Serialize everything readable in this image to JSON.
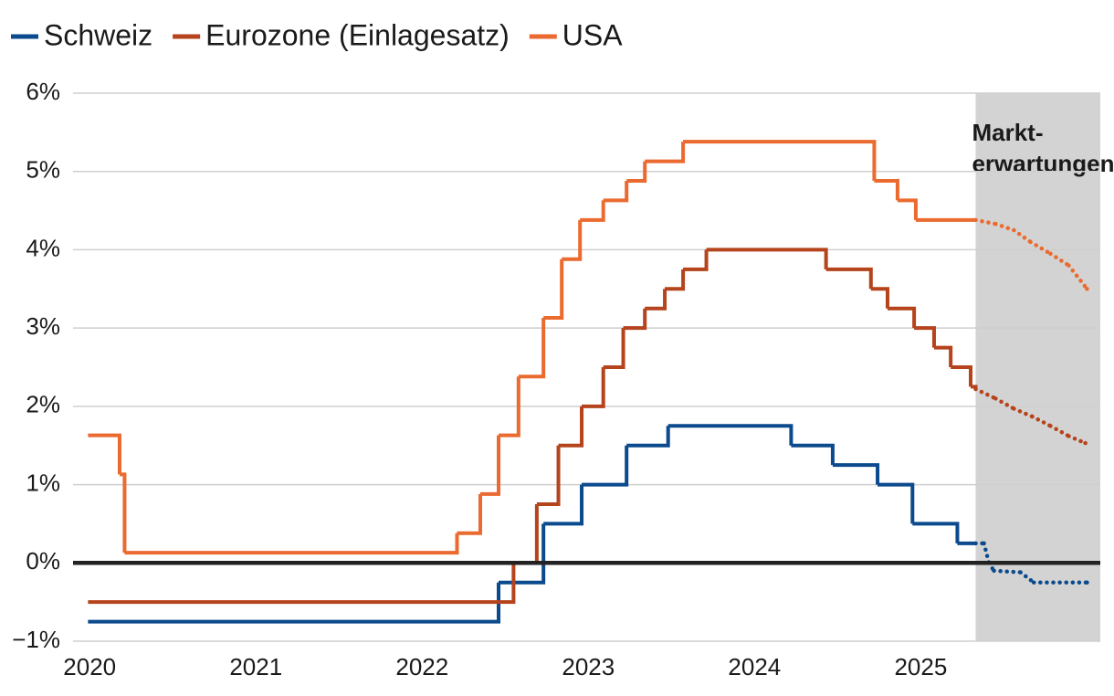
{
  "chart_data": {
    "type": "step",
    "series": [
      {
        "name": "Schweiz",
        "color": "#0b4a8c",
        "x": [
          2019.99,
          2022.46,
          2022.73,
          2022.96,
          2023.23,
          2023.48,
          2024.22,
          2024.47,
          2024.74,
          2024.95,
          2025.22,
          2025.33,
          2025.38,
          2025.41,
          2025.44,
          2025.6,
          2025.68,
          2026.0
        ],
        "values": [
          -0.75,
          -0.25,
          0.5,
          1.0,
          1.5,
          1.75,
          1.5,
          1.25,
          1.0,
          0.5,
          0.25,
          0.25,
          0.25,
          0.0,
          -0.1,
          -0.12,
          -0.25,
          -0.25
        ]
      },
      {
        "name": "Eurozone (Einlagesatz)",
        "color": "#b5431c",
        "x": [
          2019.99,
          2022.55,
          2022.69,
          2022.82,
          2022.96,
          2023.09,
          2023.21,
          2023.34,
          2023.46,
          2023.57,
          2023.71,
          2024.43,
          2024.7,
          2024.8,
          2024.96,
          2025.08,
          2025.18,
          2025.3,
          2025.33,
          2025.45,
          2025.56,
          2025.67,
          2025.78,
          2025.89,
          2025.99
        ],
        "values": [
          -0.5,
          0.0,
          0.75,
          1.5,
          2.0,
          2.5,
          3.0,
          3.25,
          3.5,
          3.75,
          4.0,
          3.75,
          3.5,
          3.25,
          3.0,
          2.75,
          2.5,
          2.25,
          2.22,
          2.1,
          1.97,
          1.87,
          1.75,
          1.62,
          1.53
        ]
      },
      {
        "name": "USA",
        "color": "#eb6a2f",
        "x": [
          2019.99,
          2020.18,
          2020.21,
          2022.21,
          2022.35,
          2022.46,
          2022.58,
          2022.73,
          2022.84,
          2022.95,
          2023.09,
          2023.23,
          2023.34,
          2023.57,
          2024.72,
          2024.86,
          2024.97,
          2025.33,
          2025.45,
          2025.56,
          2025.66,
          2025.78,
          2025.89,
          2026.0
        ],
        "values": [
          1.63,
          1.13,
          0.13,
          0.38,
          0.88,
          1.63,
          2.38,
          3.13,
          3.88,
          4.38,
          4.63,
          4.88,
          5.13,
          5.38,
          4.88,
          4.63,
          4.38,
          4.38,
          4.33,
          4.25,
          4.1,
          3.95,
          3.8,
          3.5
        ]
      }
    ],
    "forecast_from": 2025.33,
    "annotation": [
      "Markt-",
      "erwartungen"
    ],
    "xlim": [
      2019.9,
      2026.08
    ],
    "xticks": [
      2020,
      2021,
      2022,
      2023,
      2024,
      2025
    ],
    "ylim": [
      -1,
      6
    ],
    "yticks": [
      {
        "value": -1,
        "label": "−1%"
      },
      {
        "value": 0,
        "label": "0%"
      },
      {
        "value": 1,
        "label": "1%"
      },
      {
        "value": 2,
        "label": "2%"
      },
      {
        "value": 3,
        "label": "3%"
      },
      {
        "value": 4,
        "label": "4%"
      },
      {
        "value": 5,
        "label": "5%"
      },
      {
        "value": 6,
        "label": "6%"
      }
    ],
    "grid": true,
    "zero_line": true,
    "legend": "top-left"
  }
}
